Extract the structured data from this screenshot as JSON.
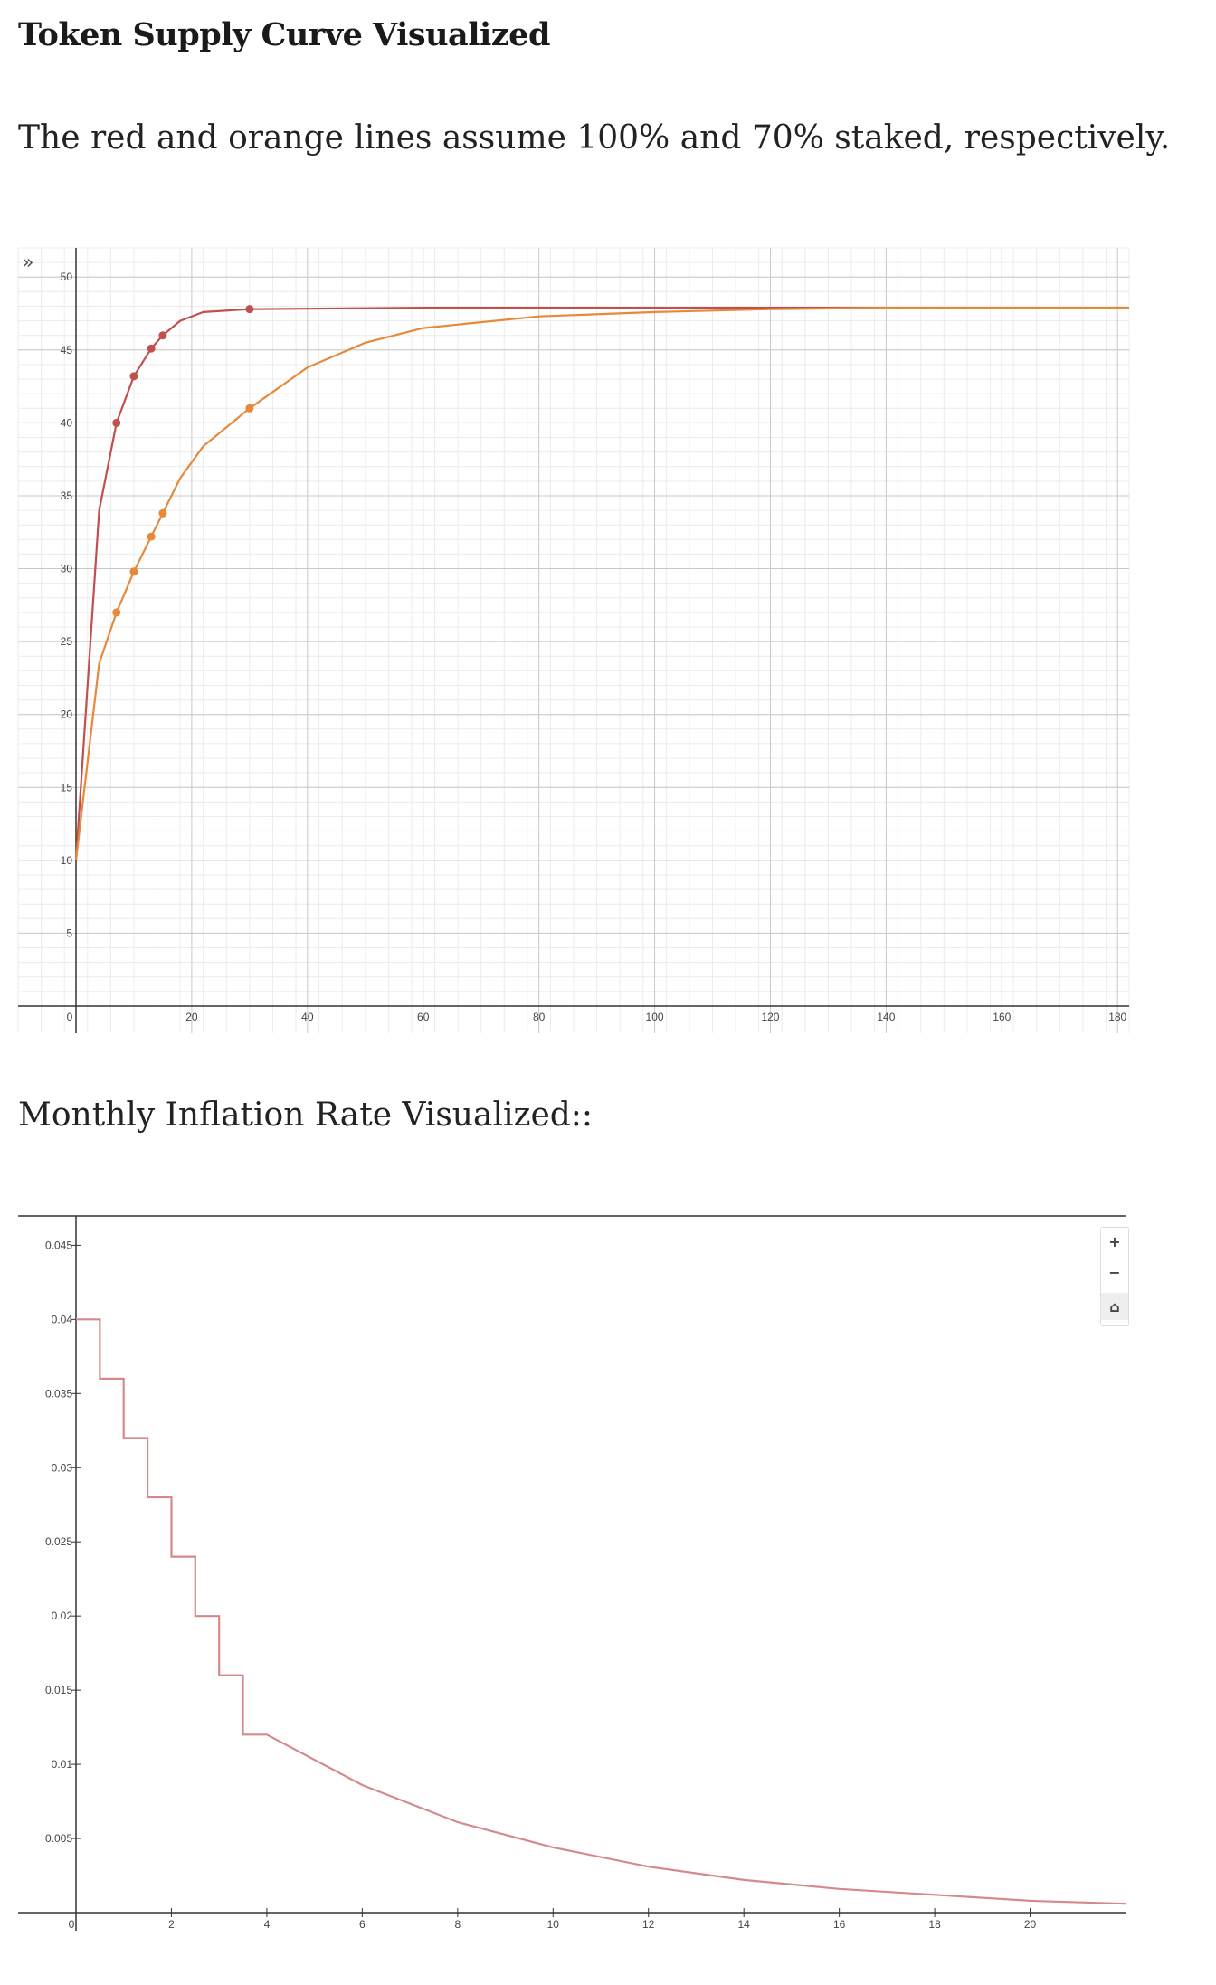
{
  "header": {
    "title": "Token Supply Curve Visualized",
    "description": "The red and orange lines assume 100% and 70% staked, respectively.",
    "section2_title": "Monthly Inflation Rate Visualized::"
  },
  "controls": {
    "expand_icon": "»",
    "zoom_in": "+",
    "zoom_out": "−",
    "home_icon": "⌂"
  },
  "chart_data": [
    {
      "type": "line",
      "xlim": [
        0,
        182
      ],
      "ylim": [
        0,
        52
      ],
      "x_ticks": [
        0,
        20,
        40,
        60,
        80,
        100,
        120,
        140,
        160,
        180
      ],
      "y_ticks": [
        5,
        10,
        15,
        20,
        25,
        30,
        35,
        40,
        45,
        50
      ],
      "grid": true,
      "colors": [
        "#c0504d",
        "#e8893a"
      ],
      "series": [
        {
          "color": "#c0504d",
          "line": [
            [
              0,
              10
            ],
            [
              4,
              34
            ],
            [
              7,
              40
            ],
            [
              10,
              43.2
            ],
            [
              13,
              45.1
            ],
            [
              15,
              46
            ],
            [
              18,
              47
            ],
            [
              22,
              47.6
            ],
            [
              30,
              47.8
            ],
            [
              60,
              47.9
            ],
            [
              182,
              47.9
            ]
          ],
          "points": [
            [
              7,
              40
            ],
            [
              10,
              43.2
            ],
            [
              13,
              45.1
            ],
            [
              15,
              46
            ],
            [
              30,
              47.8
            ]
          ]
        },
        {
          "color": "#e8893a",
          "line": [
            [
              0,
              10
            ],
            [
              4,
              23.5
            ],
            [
              7,
              27
            ],
            [
              10,
              29.8
            ],
            [
              13,
              32.2
            ],
            [
              15,
              33.8
            ],
            [
              18,
              36.2
            ],
            [
              22,
              38.4
            ],
            [
              30,
              41
            ],
            [
              40,
              43.8
            ],
            [
              50,
              45.5
            ],
            [
              60,
              46.5
            ],
            [
              80,
              47.3
            ],
            [
              100,
              47.6
            ],
            [
              120,
              47.8
            ],
            [
              140,
              47.9
            ],
            [
              182,
              47.9
            ]
          ],
          "points": [
            [
              7,
              27
            ],
            [
              10,
              29.8
            ],
            [
              13,
              32.2
            ],
            [
              15,
              33.8
            ],
            [
              30,
              41
            ]
          ]
        }
      ]
    },
    {
      "type": "line",
      "xlim": [
        0,
        22
      ],
      "ylim": [
        0,
        0.046
      ],
      "x_ticks": [
        0,
        2,
        4,
        6,
        8,
        10,
        12,
        14,
        16,
        18,
        20
      ],
      "y_ticks": [
        0.005,
        0.01,
        0.015,
        0.02,
        0.025,
        0.03,
        0.035,
        0.04,
        0.045
      ],
      "grid": false,
      "colors": [
        "#d48a8a"
      ],
      "series": [
        {
          "color": "#d48a8a",
          "line": [
            [
              0,
              0.04
            ],
            [
              0.5,
              0.04
            ],
            [
              0.5,
              0.036
            ],
            [
              1,
              0.036
            ],
            [
              1,
              0.032
            ],
            [
              1.5,
              0.032
            ],
            [
              1.5,
              0.028
            ],
            [
              2,
              0.028
            ],
            [
              2,
              0.024
            ],
            [
              2.5,
              0.024
            ],
            [
              2.5,
              0.02
            ],
            [
              3,
              0.02
            ],
            [
              3,
              0.016
            ],
            [
              3.5,
              0.016
            ],
            [
              3.5,
              0.012
            ],
            [
              4,
              0.012
            ],
            [
              6,
              0.0086
            ],
            [
              8,
              0.0061
            ],
            [
              10,
              0.0044
            ],
            [
              12,
              0.0031
            ],
            [
              14,
              0.0022
            ],
            [
              16,
              0.0016
            ],
            [
              18,
              0.0012
            ],
            [
              20,
              0.0008
            ],
            [
              22,
              0.0006
            ]
          ]
        }
      ]
    }
  ]
}
